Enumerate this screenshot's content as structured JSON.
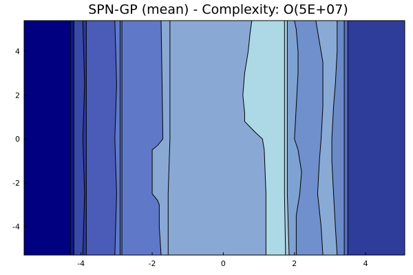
{
  "chart_data": {
    "type": "heatmap",
    "title": "SPN-GP (mean) - Complexity: O(5E+07)",
    "xlabel": "",
    "ylabel": "",
    "xlim": [
      -5.6,
      5.1
    ],
    "ylim": [
      -5.3,
      5.4
    ],
    "grid": false,
    "x_ticks": [
      -4,
      -2,
      0,
      2,
      4
    ],
    "y_ticks": [
      -4,
      -2,
      0,
      2,
      4
    ],
    "x_tick_labels": [
      "-4",
      "-2",
      "0",
      "2",
      "4"
    ],
    "y_tick_labels": [
      "-4",
      "-2",
      "0",
      "2",
      "4"
    ],
    "level_colors": [
      "#000080",
      "#33409a",
      "#4a5cb8",
      "#5f78c8",
      "#7596cc",
      "#8fb0d6",
      "#a6cae0",
      "#add8e6"
    ],
    "contours": [
      {
        "x": [
          -4.3,
          -4.3,
          -4.3,
          -4.3,
          -4.3
        ],
        "y": [
          -5.3,
          -2.5,
          0,
          2.5,
          5.4
        ]
      },
      {
        "x": [
          -4.2,
          -4.2,
          -4.2,
          -4.2,
          -4.2
        ],
        "y": [
          -5.3,
          -2.5,
          0,
          2.5,
          5.4
        ]
      },
      {
        "x": [
          -3.95,
          -3.9,
          -3.95,
          -3.9,
          -3.95
        ],
        "y": [
          -5.3,
          -2.5,
          0,
          2.5,
          5.4
        ]
      },
      {
        "x": [
          -3.85,
          -3.85,
          -3.85,
          -3.85,
          -3.85
        ],
        "y": [
          -5.3,
          -2.5,
          0,
          2.5,
          5.4
        ]
      },
      {
        "x": [
          -3.05,
          -3.0,
          -3.05,
          -3.0,
          -3.05
        ],
        "y": [
          -5.3,
          -2.5,
          0,
          2.5,
          5.4
        ]
      },
      {
        "x": [
          -2.85,
          -2.85,
          -2.85,
          -2.85,
          -2.85
        ],
        "y": [
          -5.3,
          -2.5,
          0,
          2.5,
          5.4
        ]
      },
      {
        "x": [
          -2.9,
          -2.9,
          -2.9,
          -2.9,
          -2.9
        ],
        "y": [
          -5.3,
          -2.5,
          0,
          2.5,
          5.4
        ]
      },
      {
        "x": [
          -1.75,
          -1.8,
          -1.8,
          -1.85,
          -2.0,
          -2.0,
          -2.0,
          -1.85,
          -1.7,
          -1.72,
          -1.75
        ],
        "y": [
          -5.3,
          -4.0,
          -3.0,
          -2.8,
          -2.5,
          -1.0,
          -0.5,
          -0.3,
          0.0,
          2.5,
          5.4
        ]
      },
      {
        "x": [
          -1.55,
          -1.55,
          -1.5,
          -1.5,
          -1.5
        ],
        "y": [
          -5.3,
          -2.5,
          0,
          2.5,
          5.4
        ]
      },
      {
        "x": [
          1.2,
          1.2,
          1.15,
          1.1,
          0.9,
          0.6,
          0.6,
          0.55,
          0.6,
          0.7,
          0.75,
          0.8
        ],
        "y": [
          -5.3,
          -2.5,
          -0.5,
          0.0,
          0.3,
          0.8,
          1.2,
          2.0,
          3.0,
          4.0,
          4.8,
          5.4
        ]
      },
      {
        "x": [
          1.75,
          1.72,
          1.72,
          1.72,
          1.72
        ],
        "y": [
          -5.3,
          -2.5,
          0,
          2.5,
          5.4
        ]
      },
      {
        "x": [
          1.85,
          1.8,
          1.8,
          1.8,
          1.8
        ],
        "y": [
          -5.3,
          -2.5,
          0,
          2.5,
          5.4
        ]
      },
      {
        "x": [
          2.05,
          2.05,
          2.15,
          2.2,
          2.1,
          2.0,
          2.05,
          2.1,
          2.1,
          2.05,
          2.0
        ],
        "y": [
          -5.3,
          -3.5,
          -2.5,
          -1.5,
          -0.5,
          0.0,
          1.5,
          3.0,
          4.0,
          5.0,
          5.4
        ]
      },
      {
        "x": [
          2.8,
          2.75,
          2.65,
          2.7,
          2.75,
          2.8,
          2.8,
          2.6
        ],
        "y": [
          -5.3,
          -4.0,
          -2.5,
          -1.0,
          0.0,
          1.5,
          3.5,
          5.4
        ]
      },
      {
        "x": [
          3.2,
          3.15,
          3.1,
          3.05,
          3.05,
          3.1,
          3.15,
          3.2,
          3.2
        ],
        "y": [
          -5.3,
          -4.0,
          -2.5,
          -1.0,
          0.0,
          1.5,
          2.5,
          4.0,
          5.4
        ]
      },
      {
        "x": [
          3.4,
          3.4,
          3.4,
          3.4,
          3.4
        ],
        "y": [
          -5.3,
          -2.5,
          0,
          2.5,
          5.4
        ]
      },
      {
        "x": [
          3.5,
          3.5,
          3.5,
          3.5,
          3.5
        ],
        "y": [
          -5.3,
          -2.5,
          0,
          2.5,
          5.4
        ]
      }
    ]
  }
}
